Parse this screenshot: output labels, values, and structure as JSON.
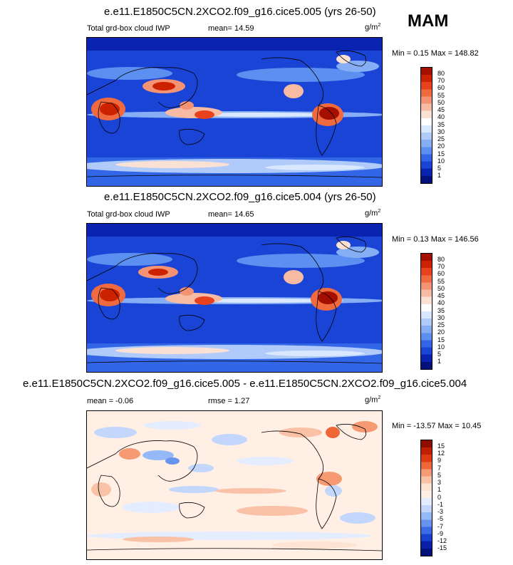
{
  "season": "MAM",
  "colorbars": {
    "iwp_levels": [
      "80",
      "70",
      "60",
      "55",
      "50",
      "45",
      "40",
      "35",
      "30",
      "25",
      "20",
      "15",
      "10",
      "5",
      "1"
    ],
    "iwp_colors": [
      "#a50f00",
      "#cc2200",
      "#e8411d",
      "#f06a3f",
      "#f49373",
      "#f7baa3",
      "#fbe0d4",
      "#ffffff",
      "#d9e7ff",
      "#b0cbfa",
      "#86aef5",
      "#5b8ff0",
      "#3366e6",
      "#1a44d6",
      "#0a22b0",
      "#02127a"
    ],
    "diff_levels": [
      "15",
      "12",
      "9",
      "7",
      "5",
      "3",
      "1",
      "0",
      "-1",
      "-3",
      "-5",
      "-7",
      "-9",
      "-12",
      "-15"
    ],
    "diff_colors": [
      "#8f0d00",
      "#c01e00",
      "#de3a14",
      "#ef6637",
      "#f69a74",
      "#f9c2a6",
      "#fde4d2",
      "#ffefe4",
      "#e3edff",
      "#c3d7fd",
      "#95b8f7",
      "#6793ef",
      "#3a6ae6",
      "#1a42d0",
      "#0b20a8",
      "#02107a"
    ]
  },
  "panel1": {
    "title": "e.e11.E1850C5CN.2XCO2.f09_g16.cice5.005 (yrs 26-50)",
    "variable": "Total grd-box cloud IWP",
    "mean": "mean=  14.59",
    "units": "g/m",
    "units_exp": "2",
    "minmax": "Min =  0.15 Max = 148.82"
  },
  "panel2": {
    "title": "e.e11.E1850C5CN.2XCO2.f09_g16.cice5.004 (yrs 26-50)",
    "variable": "Total grd-box cloud IWP",
    "mean": "mean=  14.65",
    "units": "g/m",
    "units_exp": "2",
    "minmax": "Min =  0.13 Max = 146.56"
  },
  "panel3": {
    "title": "e.e11.E1850C5CN.2XCO2.f09_g16.cice5.005 - e.e11.E1850C5CN.2XCO2.f09_g16.cice5.004",
    "mean": "mean =  -0.06",
    "rmse": "rmse =   1.27",
    "units": "g/m",
    "units_exp": "2",
    "minmax": "Min = -13.57 Max = 10.45"
  }
}
